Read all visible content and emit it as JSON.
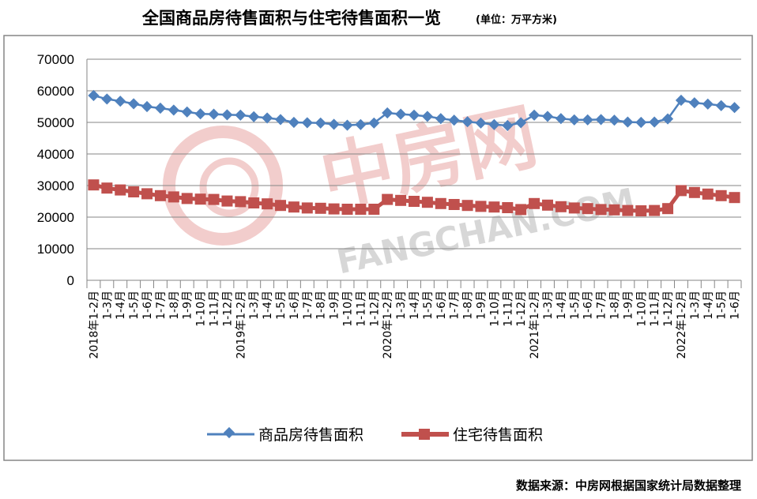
{
  "title": "全国商品房待售面积与住宅待售面积一览",
  "unit_note": "(单位：万平方米)",
  "source_note": "数据来源：中房网根据国家统计局数据整理",
  "watermark": {
    "cn": "中房网",
    "en": "FANGCHAN.COM"
  },
  "colors": {
    "series1": "#4f81bd",
    "series2": "#c0504d",
    "grid": "#868686",
    "frame": "#868686",
    "watermark": "#e8a6a4"
  },
  "chart_data": {
    "type": "line",
    "ylim": [
      0,
      70000
    ],
    "yticks": [
      0,
      10000,
      20000,
      30000,
      40000,
      50000,
      60000,
      70000
    ],
    "grid": true,
    "legend_position": "bottom",
    "categories": [
      "2018年1-2月",
      "1-3月",
      "1-4月",
      "1-5月",
      "1-6月",
      "1-7月",
      "1-8月",
      "1-9月",
      "1-10月",
      "1-11月",
      "1-12月",
      "2019年1-2月",
      "1-3月",
      "1-4月",
      "1-5月",
      "1-6月",
      "1-7月",
      "1-8月",
      "1-9月",
      "1-10月",
      "1-11月",
      "1-12月",
      "2020年1-2月",
      "1-3月",
      "1-4月",
      "1-5月",
      "1-6月",
      "1-7月",
      "1-8月",
      "1-9月",
      "1-10月",
      "1-11月",
      "1-12月",
      "2021年1-2月",
      "1-3月",
      "1-4月",
      "1-5月",
      "1-6月",
      "1-7月",
      "1-8月",
      "1-9月",
      "1-10月",
      "1-11月",
      "1-12月",
      "2022年1-2月",
      "1-3月",
      "1-4月",
      "1-5月",
      "1-6月"
    ],
    "series": [
      {
        "name": "商品房待售面积",
        "values": [
          58500,
          57400,
          56700,
          55900,
          55000,
          54500,
          53900,
          53300,
          52700,
          52600,
          52400,
          52300,
          51800,
          51400,
          50900,
          50000,
          49900,
          49800,
          49400,
          49100,
          49300,
          49800,
          53000,
          52600,
          52300,
          51900,
          51200,
          50700,
          50200,
          49800,
          49300,
          49000,
          49900,
          52300,
          51900,
          51200,
          50800,
          50800,
          50900,
          50700,
          50100,
          50000,
          50100,
          51100,
          57000,
          56200,
          55800,
          55300,
          54700
        ]
      },
      {
        "name": "住宅待售面积",
        "values": [
          30200,
          29200,
          28600,
          28000,
          27400,
          26800,
          26400,
          25900,
          25700,
          25600,
          25100,
          24900,
          24500,
          24200,
          23700,
          23200,
          22900,
          22800,
          22600,
          22500,
          22500,
          22500,
          25600,
          25300,
          25000,
          24700,
          24300,
          24000,
          23700,
          23400,
          23200,
          23000,
          22400,
          24300,
          23800,
          23300,
          22900,
          22700,
          22400,
          22300,
          22100,
          22000,
          22100,
          22700,
          28400,
          27800,
          27300,
          26800,
          26200
        ]
      }
    ]
  }
}
